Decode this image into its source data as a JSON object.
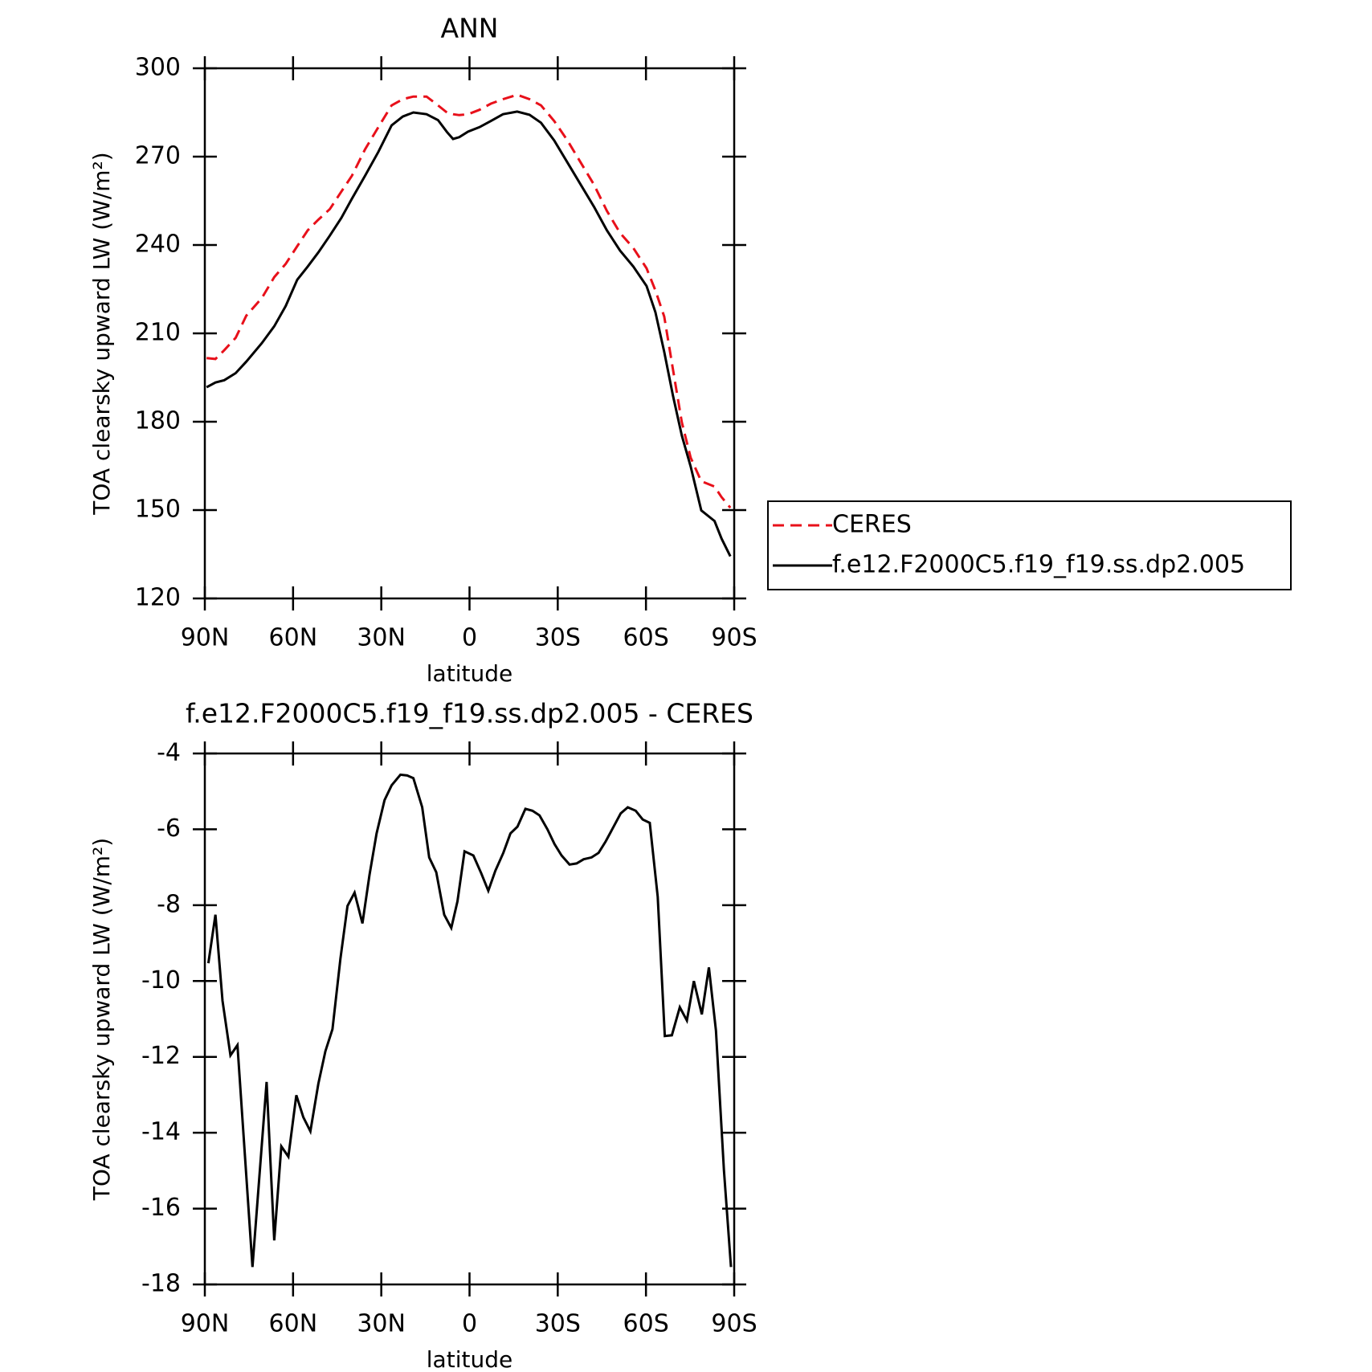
{
  "chart_data": [
    {
      "type": "line",
      "title": "ANN",
      "xlabel": "latitude",
      "ylabel": "TOA clearsky upward LW (W/m²)",
      "x": [
        89.4,
        86.4,
        83.4,
        79.5,
        75.9,
        70.6,
        66.4,
        62.5,
        58.6,
        55,
        51.4,
        47.5,
        43.6,
        40,
        35.5,
        31,
        26.5,
        22.7,
        19.1,
        14.6,
        10.7,
        7.7,
        5.6,
        3.5,
        0.5,
        -3.4,
        -7.3,
        -11.4,
        -16.2,
        -20.4,
        -24.3,
        -28.8,
        -33.3,
        -37.8,
        -42.3,
        -46.7,
        -51.2,
        -55.7,
        -60.2,
        -63.2,
        -66.2,
        -69.2,
        -72.2,
        -75.2,
        -78.8,
        -83.3,
        -85.7,
        -88.7
      ],
      "series": [
        {
          "name": "CERES",
          "color": "#e8101a",
          "line_style": "dashed",
          "values": [
            201.6,
            201.3,
            204.3,
            208.5,
            216,
            222,
            229.1,
            233.6,
            239.6,
            245,
            248.6,
            252.2,
            258.1,
            263.5,
            272.5,
            280,
            287.4,
            289.5,
            290.4,
            290.4,
            287.4,
            285,
            284.4,
            284.1,
            284.4,
            285.9,
            288,
            289.5,
            291,
            289.5,
            287.4,
            282.1,
            275.5,
            268,
            260.5,
            251.6,
            244.1,
            239,
            232.1,
            224.6,
            215.7,
            197.7,
            179.8,
            167.8,
            159.8,
            158,
            154.4,
            150.8
          ]
        },
        {
          "name": "f.e12.F2000C5.f19_f19.ss.dp2.005",
          "color": "#000000",
          "line_style": "solid",
          "values": [
            191.7,
            193.3,
            194.1,
            196.5,
            200.4,
            206.7,
            212.4,
            219.3,
            228.2,
            232.7,
            237.5,
            243.2,
            249.2,
            255.7,
            263.5,
            271.6,
            280.6,
            283.6,
            285,
            284.4,
            282.4,
            278.4,
            276,
            276.6,
            278.5,
            280,
            282.1,
            284.4,
            285.3,
            284.2,
            281.5,
            275.5,
            268,
            260.5,
            253,
            245,
            238.1,
            232.7,
            226.1,
            217.2,
            203.7,
            188.8,
            175.3,
            164.8,
            149.9,
            146.3,
            140.3,
            134.3
          ]
        }
      ],
      "xlim": [
        90,
        -90
      ],
      "xticks": [
        {
          "value": 90,
          "label": "90N"
        },
        {
          "value": 60,
          "label": "60N"
        },
        {
          "value": 30,
          "label": "30N"
        },
        0,
        {
          "value": -30,
          "label": "30S"
        },
        {
          "value": -60,
          "label": "60S"
        },
        {
          "value": -90,
          "label": "90S"
        }
      ],
      "ylim": [
        120,
        300
      ],
      "yticks": [
        120,
        150,
        180,
        210,
        240,
        270,
        300
      ],
      "legend": "right"
    },
    {
      "type": "line",
      "title": "f.e12.F2000C5.f19_f19.ss.dp2.005 - CERES",
      "xlabel": "latitude",
      "ylabel": "TOA clearsky upward LW (W/m²)",
      "x": [
        88.8,
        86.4,
        84,
        81.3,
        78.9,
        73.8,
        69,
        66.4,
        64,
        61.6,
        58.9,
        56.5,
        54.1,
        51.4,
        49,
        46.6,
        43.9,
        41.5,
        39.1,
        36.4,
        34,
        31.6,
        28.9,
        26.5,
        23.5,
        21.2,
        19.1,
        16.1,
        13.7,
        11.3,
        8.6,
        6.2,
        4.1,
        1.7,
        -1.3,
        -4,
        -6.4,
        -8.8,
        -11.5,
        -13.9,
        -16.3,
        -19,
        -21.4,
        -23.8,
        -26.5,
        -28.9,
        -31.3,
        -34,
        -36.4,
        -38.8,
        -41.5,
        -43.9,
        -46.3,
        -49,
        -51.4,
        -53.8,
        -56.5,
        -58.9,
        -61.3,
        -64,
        -66.4,
        -68.8,
        -71.5,
        -73.9,
        -76.3,
        -79,
        -81.4,
        -83.8,
        -86.5,
        -88.9
      ],
      "series": [
        {
          "name": "f.e12.F2000C5.f19_f19.ss.dp2.005 - CERES",
          "color": "#000000",
          "line_style": "solid",
          "values": [
            -9.53,
            -8.25,
            -10.52,
            -11.96,
            -11.69,
            -17.54,
            -12.66,
            -16.84,
            -14.36,
            -14.63,
            -13.01,
            -13.59,
            -13.96,
            -12.71,
            -11.85,
            -11.27,
            -9.41,
            -8.02,
            -7.67,
            -8.48,
            -7.2,
            -6.11,
            -5.23,
            -4.84,
            -4.56,
            -4.58,
            -4.65,
            -5.42,
            -6.74,
            -7.13,
            -8.25,
            -8.6,
            -7.9,
            -6.58,
            -6.69,
            -7.16,
            -7.62,
            -7.09,
            -6.62,
            -6.11,
            -5.93,
            -5.46,
            -5.51,
            -5.63,
            -6.0,
            -6.39,
            -6.69,
            -6.93,
            -6.9,
            -6.79,
            -6.74,
            -6.62,
            -6.32,
            -5.93,
            -5.58,
            -5.42,
            -5.51,
            -5.74,
            -5.83,
            -7.78,
            -11.45,
            -11.43,
            -10.69,
            -11.04,
            -10.0,
            -10.88,
            -9.64,
            -11.31,
            -14.98,
            -17.54
          ]
        }
      ],
      "xlim": [
        90,
        -90
      ],
      "xticks": [
        {
          "value": 90,
          "label": "90N"
        },
        {
          "value": 60,
          "label": "60N"
        },
        {
          "value": 30,
          "label": "30N"
        },
        0,
        {
          "value": -30,
          "label": "30S"
        },
        {
          "value": -60,
          "label": "60S"
        },
        {
          "value": -90,
          "label": "90S"
        }
      ],
      "ylim": [
        -18,
        -4
      ],
      "yticks": [
        -18,
        -16,
        -14,
        -12,
        -10,
        -8,
        -6,
        -4
      ]
    }
  ]
}
